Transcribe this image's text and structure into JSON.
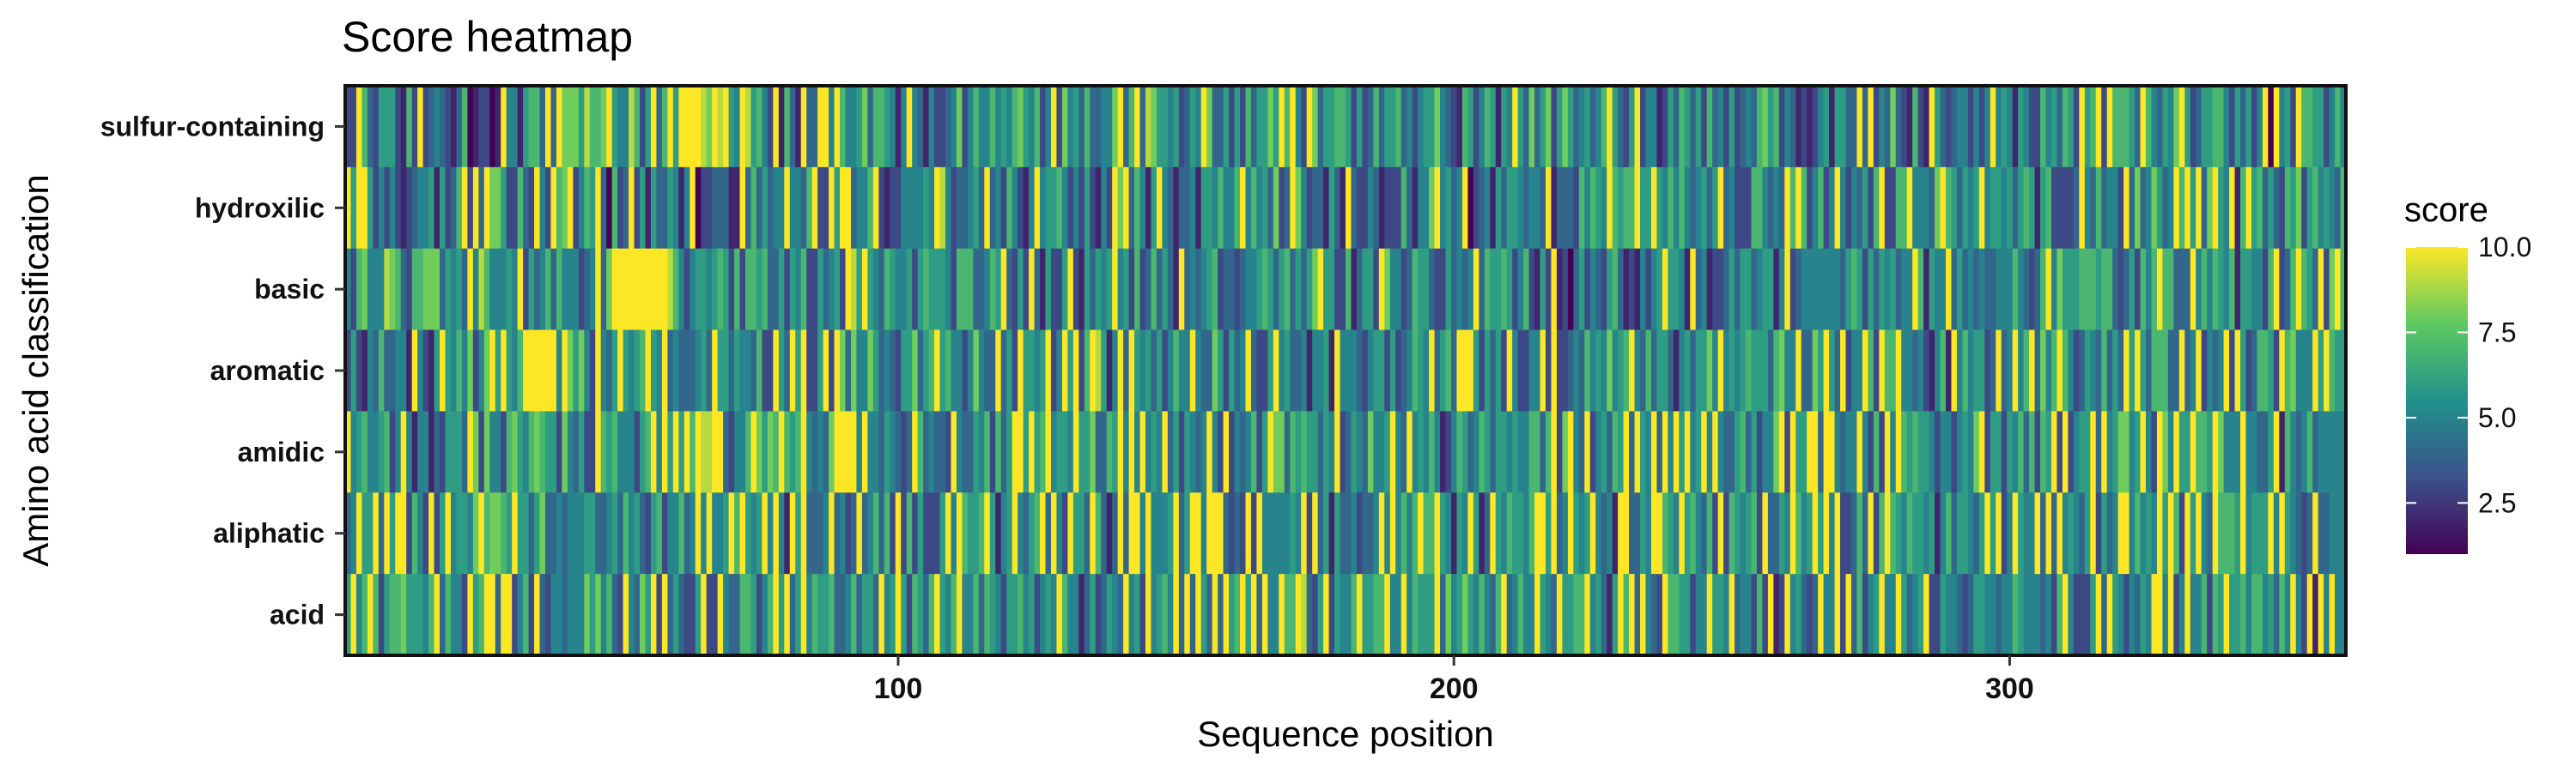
{
  "chart_data": {
    "type": "heatmap",
    "title": "Score heatmap",
    "xlabel": "Sequence position",
    "ylabel": "Amino acid classification",
    "x_range": [
      1,
      360
    ],
    "x_ticks": [
      100,
      200,
      300
    ],
    "categories_y": [
      "sulfur-containing",
      "hydroxilic",
      "basic",
      "aromatic",
      "amidic",
      "aliphatic",
      "acid"
    ],
    "legend": {
      "title": "score",
      "min": 1,
      "max": 10,
      "ticks": [
        10.0,
        7.5,
        5.0,
        2.5
      ],
      "tick_labels": [
        "10.0",
        "7.5",
        "5.0",
        "2.5"
      ],
      "colormap": [
        "#440154",
        "#3b528b",
        "#21918c",
        "#5ec962",
        "#fde725"
      ]
    },
    "rows": {
      "sulfur-containing": "33B7436663273B34543247123312A5526774A4A88869778B6559736A47A6AAAA98A9A65A96753A2742A44AA5A755684776525A5425334583575575657865735A38564744558A47A49866563465A8446363746686A7A53A846677636347466745356685432763576265A6484683686456457A6436A355236476463745363454786735423235626644A4A3548432732A6434553535A565265337564763A67A3A77764A754658A63466775364635A1A563A776635754856357486747563645A",
      "hydroxilic": "A6AA63535323455626347A3A4A88633743A53A78A3576A41734A3626446525A13344422A4746455A5547A33A6AA4557A3233555565A95344564A45375325A5667535363253A8A47526A54244526657557A57564834A853442642A433542333742558A5645A13452646654554A2444375765A7677A66A65757545646A45333775454A7A735735A5354637A3377A55548A764656A56656467626733334A5474553A48458645A7A6A48A65A27A67464376836756547A4566",
      "basic": "5378555987437788846564A59755565A3645747555345A48AAAAAAAAAA97535665676373776744636573364563A96A654765563676665377744576A4363A426336A3264656A56373474642A454567344345567646746468A6633724663A8553476643364545A4766763573263A2314635436742325356A6652A4523346466456625A3455555554676364656455A72655A46454544555754347A5866677767743463757A77444A57576572665537A347A764A38A75445",
      "aromatic": "363254744552A5326A65758358A6A657AAAAAA5A86853A546A6567A65A45444564A6646554733A64A6A336A3A84855864543668467A6755358544A463A6656A35A6A37A9625A4A6564635755A544863645A4336A5644525562A5554356636345765A4674AAA636463A53355A3A3345475658567A547466425646685A5656766647855A4486A64A355A73A77A554532572A5756634A45A57A4857A75346547464A6A6477744A45A3545A3A6347763A78555A6A7666A",
      "amidic": "A567556735A52552436664A8385537865787663854633A767555367A5A6A6A7A99AA43557A8687A767A54548AAAA5A55465434A745443A5446573746AA6A67A5665A6684476A5A5A565A4636545A53A3545736A88476766465A346548556A54A5657523576457646656557747A38A54A356476A4A65A4A5A6A56A5A54467463558A3A66AA4AA5455A5373A5A76766535535658A366365747376A3A3566A4A568856A53A85A66A776A8555A55446A2754574",
      "aliphatic": "45A66A4A6AA3753A36A56658A78876A66468445455566445647564367355745A5A556A7A656A5A52A6A4445A4534A457473A37363336A5A7667A6256A5467A4A53A664A7424A4AA5A5556A46AA5AAA4343A3A5555565A3A46264453445A5A5757A77A65265A624A6576657AA6A45A656A5452AA4465AA765A675473A3765673A4465A756A6A5A33474A37A76576656257466546A6A35A655A4A4A56546A3645AA57565A6A73A6A54A7776A5666A5A65434A44",
      "acid": "6A57A73677866657A47553A67AA4AA3573A435545558685743A5486A3A464336A33A544776357A6A46A5766744574664A56A637647A657A55747653667563565A75524634654A563A5675A4A4A64A4A67A6A4A55A77A9436A36557A6677A55A57666A48568657547A45755A654A6677A56426A7A4A543A7766355A665A455373A23A56434A55A3A47356A55A6456A336554346655455765554537A53336A4A6535465AA5A35A557376A66757756475A53A2A5A"
    }
  }
}
